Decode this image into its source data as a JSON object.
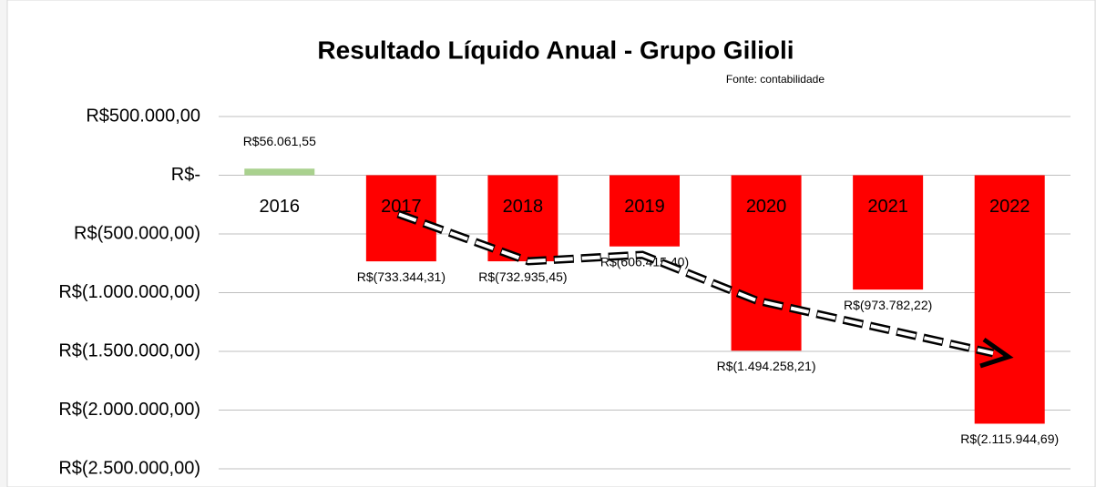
{
  "chart_data": {
    "type": "bar",
    "title": "Resultado Líquido Anual - Grupo Gilioli",
    "subtitle": "Fonte: contabilidade",
    "categories": [
      "2016",
      "2017",
      "2018",
      "2019",
      "2020",
      "2021",
      "2022"
    ],
    "values": [
      56061.55,
      -733344.31,
      -732935.45,
      -606415.4,
      -1494258.21,
      -973782.22,
      -2115944.69
    ],
    "value_labels": [
      "R$56.061,55",
      "R$(733.344,31)",
      "R$(732.935,45)",
      "R$(606.415,40)",
      "R$(1.494.258,21)",
      "R$(973.782,22)",
      "R$(2.115.944,69)"
    ],
    "colors": [
      "#a9d18e",
      "#ff0000",
      "#ff0000",
      "#ff0000",
      "#ff0000",
      "#ff0000",
      "#ff0000"
    ],
    "ylim": [
      -2500000,
      500000
    ],
    "yticks": [
      {
        "value": 500000,
        "label": "R$500.000,00"
      },
      {
        "value": 0,
        "label": "R$-"
      },
      {
        "value": -500000,
        "label": "R$(500.000,00)"
      },
      {
        "value": -1000000,
        "label": "R$(1.000.000,00)"
      },
      {
        "value": -1500000,
        "label": "R$(1.500.000,00)"
      },
      {
        "value": -2000000,
        "label": "R$(2.000.000,00)"
      },
      {
        "value": -2500000,
        "label": "R$(2.500.000,00)"
      }
    ],
    "grid": true
  }
}
